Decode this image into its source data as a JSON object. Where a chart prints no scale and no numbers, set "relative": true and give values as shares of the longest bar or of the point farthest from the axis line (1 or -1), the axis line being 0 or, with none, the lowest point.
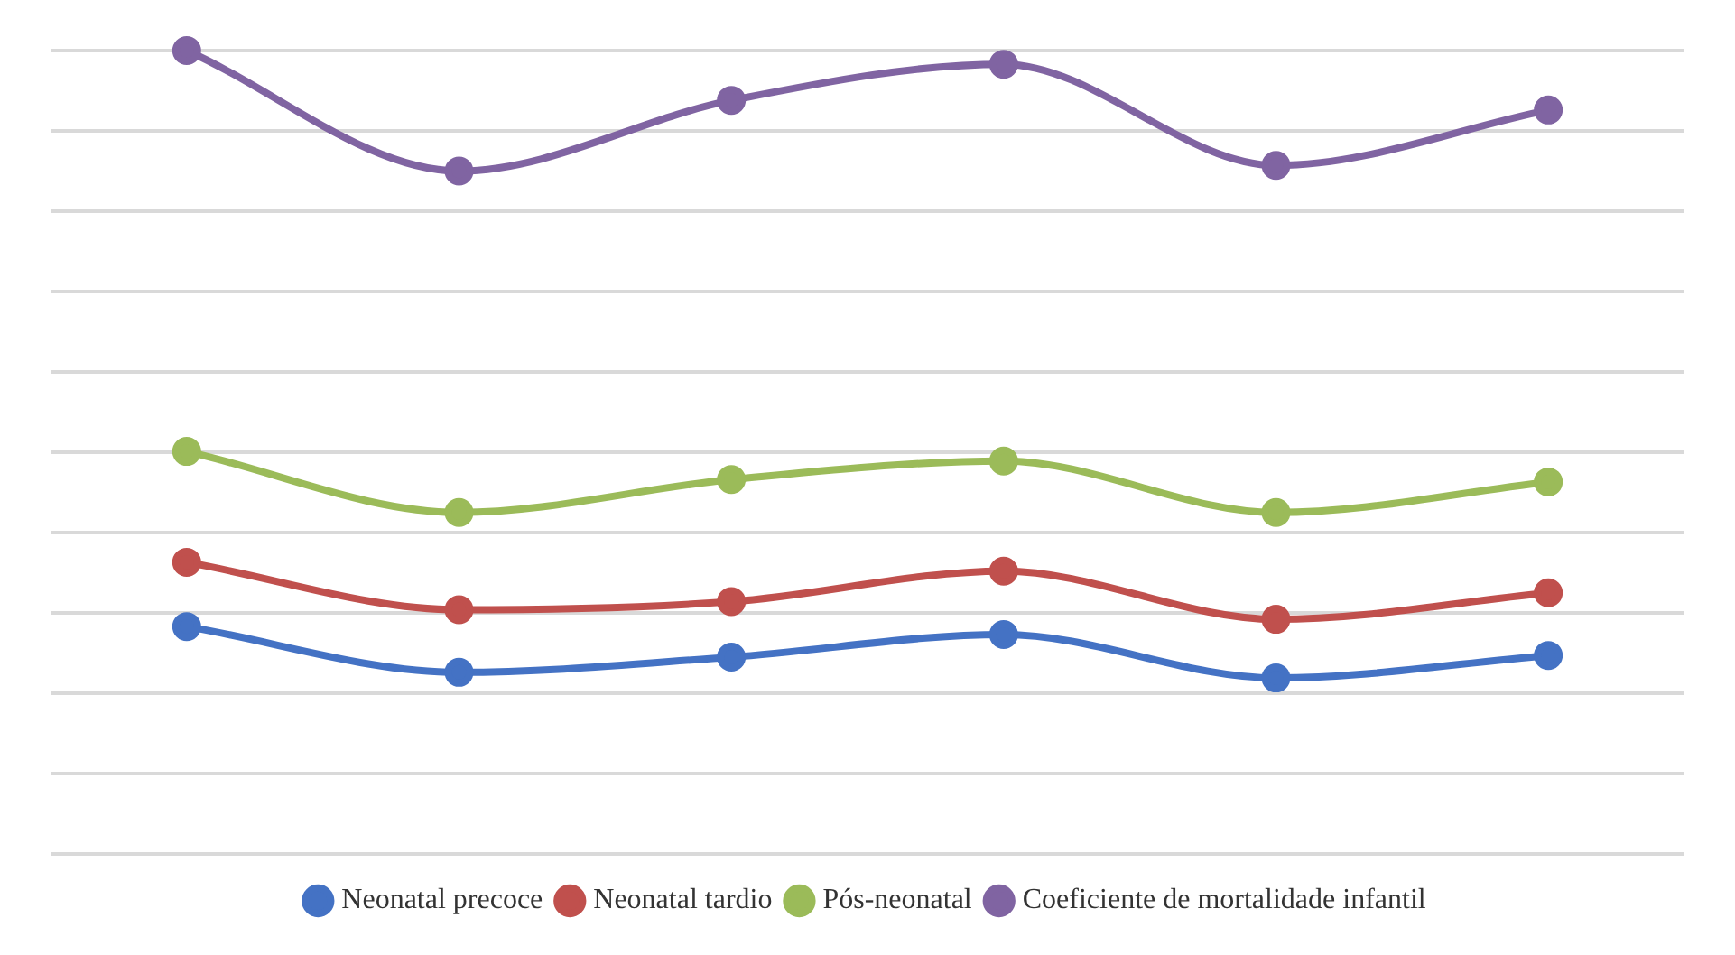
{
  "chart_data": {
    "type": "line",
    "relative": true,
    "categories": [
      null,
      null,
      null,
      null,
      null,
      null
    ],
    "series": [
      {
        "name": "Neonatal precoce",
        "color": "#4472c4",
        "values": [
          0.283,
          0.226,
          0.245,
          0.273,
          0.219,
          0.247
        ]
      },
      {
        "name": "Neonatal tardio",
        "color": "#c0504d",
        "values": [
          0.363,
          0.304,
          0.314,
          0.352,
          0.292,
          0.325
        ]
      },
      {
        "name": "Pós-neonatal",
        "color": "#9bbb59",
        "values": [
          0.501,
          0.425,
          0.466,
          0.489,
          0.425,
          0.463
        ]
      },
      {
        "name": "Coeficiente de mortalidade infantil",
        "color": "#8064a2",
        "values": [
          1,
          0.85,
          0.938,
          0.983,
          0.857,
          0.926
        ]
      }
    ],
    "grid": "y",
    "legend": "bottom",
    "marker": "circle",
    "line_style": "solid"
  }
}
